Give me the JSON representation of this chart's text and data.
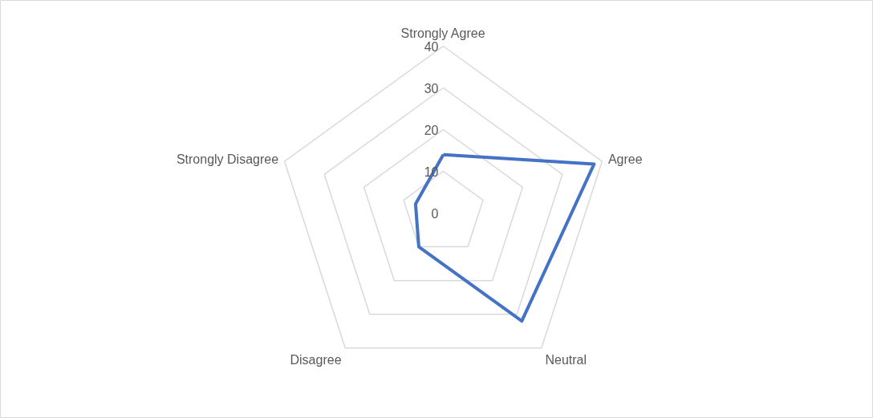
{
  "chart_data": {
    "type": "radar",
    "categories": [
      "Strongly Agree",
      "Agree",
      "Neutral",
      "Disagree",
      "Strongly Disagree"
    ],
    "series": [
      {
        "color": "#4472c4",
        "values": [
          14,
          38,
          32,
          10,
          7
        ]
      }
    ],
    "ylim": [
      0,
      40
    ],
    "yticks": [
      0,
      10,
      20,
      30,
      40
    ],
    "grid": true,
    "marker": "none",
    "line_style": "solid"
  }
}
